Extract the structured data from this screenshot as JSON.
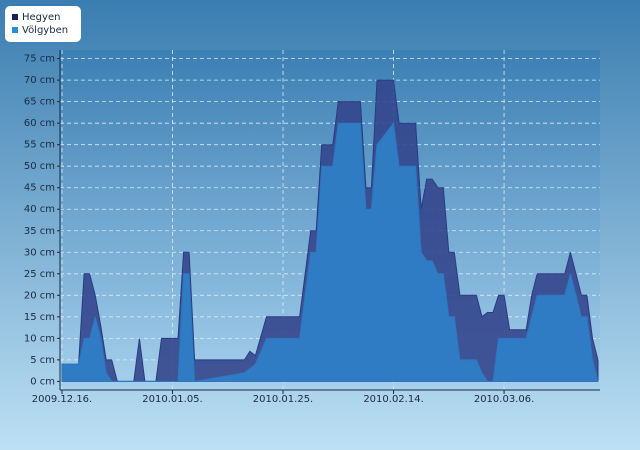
{
  "chart_data": {
    "type": "area",
    "x": [
      "2009.12.16.",
      "2009.12.19.",
      "2009.12.20.",
      "2009.12.21.",
      "2009.12.22.",
      "2009.12.23.",
      "2009.12.24.",
      "2009.12.25.",
      "2009.12.26.",
      "2009.12.29.",
      "2009.12.30.",
      "2009.12.31.",
      "2010.01.02.",
      "2010.01.03.",
      "2010.01.06.",
      "2010.01.07.",
      "2010.01.08.",
      "2010.01.09.",
      "2010.01.18.",
      "2010.01.19.",
      "2010.01.20.",
      "2010.01.22.",
      "2010.01.28.",
      "2010.01.30.",
      "2010.01.31.",
      "2010.02.01.",
      "2010.02.03.",
      "2010.02.04.",
      "2010.02.08.",
      "2010.02.09.",
      "2010.02.10.",
      "2010.02.11.",
      "2010.02.14.",
      "2010.02.15.",
      "2010.02.18.",
      "2010.02.19.",
      "2010.02.20.",
      "2010.02.21.",
      "2010.02.22.",
      "2010.02.23.",
      "2010.02.24.",
      "2010.02.25.",
      "2010.02.26.",
      "2010.03.01.",
      "2010.03.02.",
      "2010.03.03.",
      "2010.03.04.",
      "2010.03.05.",
      "2010.03.06.",
      "2010.03.07.",
      "2010.03.10.",
      "2010.03.11.",
      "2010.03.12.",
      "2010.03.17.",
      "2010.03.18.",
      "2010.03.20.",
      "2010.03.21.",
      "2010.03.22.",
      "2010.03.23."
    ],
    "series": [
      {
        "name": "Hegyen",
        "color": "#283c82",
        "fill": "#34468c",
        "values": [
          4,
          4,
          25,
          25,
          20,
          13,
          5,
          5,
          0,
          0,
          10,
          0,
          0,
          10,
          10,
          30,
          30,
          5,
          5,
          7,
          6,
          15,
          15,
          35,
          35,
          55,
          55,
          65,
          65,
          45,
          45,
          70,
          70,
          60,
          60,
          40,
          47,
          47,
          45,
          45,
          30,
          30,
          20,
          20,
          15,
          16,
          16,
          20,
          20,
          12,
          12,
          20,
          25,
          25,
          30,
          20,
          20,
          10,
          5
        ]
      },
      {
        "name": "Völgyben",
        "color": "#2b78c0",
        "fill": "#2f7ec6",
        "values": [
          4,
          4,
          10,
          10,
          15,
          10,
          2,
          0,
          0,
          0,
          0,
          0,
          0,
          0,
          0,
          25,
          25,
          0,
          2,
          3,
          4,
          10,
          10,
          30,
          30,
          50,
          50,
          60,
          60,
          40,
          40,
          55,
          60,
          50,
          50,
          30,
          28,
          28,
          25,
          25,
          15,
          15,
          5,
          5,
          2,
          0,
          0,
          10,
          10,
          10,
          10,
          15,
          20,
          20,
          25,
          15,
          15,
          5,
          0
        ]
      }
    ],
    "xlim": [
      "2009.12.16.",
      "2010.03.23."
    ],
    "xticks": [
      "2009.12.16.",
      "2010.01.05.",
      "2010.01.25.",
      "2010.02.14.",
      "2010.03.06."
    ],
    "ylim": [
      -2,
      77
    ],
    "yticks": [
      {
        "value": 0,
        "label": "0 cm"
      },
      {
        "value": 5,
        "label": "5 cm"
      },
      {
        "value": 10,
        "label": "10 cm"
      },
      {
        "value": 15,
        "label": "15 cm"
      },
      {
        "value": 20,
        "label": "20 cm"
      },
      {
        "value": 25,
        "label": "25 cm"
      },
      {
        "value": 30,
        "label": "30 cm"
      },
      {
        "value": 35,
        "label": "35 cm"
      },
      {
        "value": 40,
        "label": "40 cm"
      },
      {
        "value": 45,
        "label": "45 cm"
      },
      {
        "value": 50,
        "label": "50 cm"
      },
      {
        "value": 55,
        "label": "55 cm"
      },
      {
        "value": 60,
        "label": "60 cm"
      },
      {
        "value": 65,
        "label": "65 cm"
      },
      {
        "value": 70,
        "label": "70 cm"
      },
      {
        "value": 75,
        "label": "75 cm"
      }
    ],
    "grid": true,
    "legend": "top-left"
  }
}
